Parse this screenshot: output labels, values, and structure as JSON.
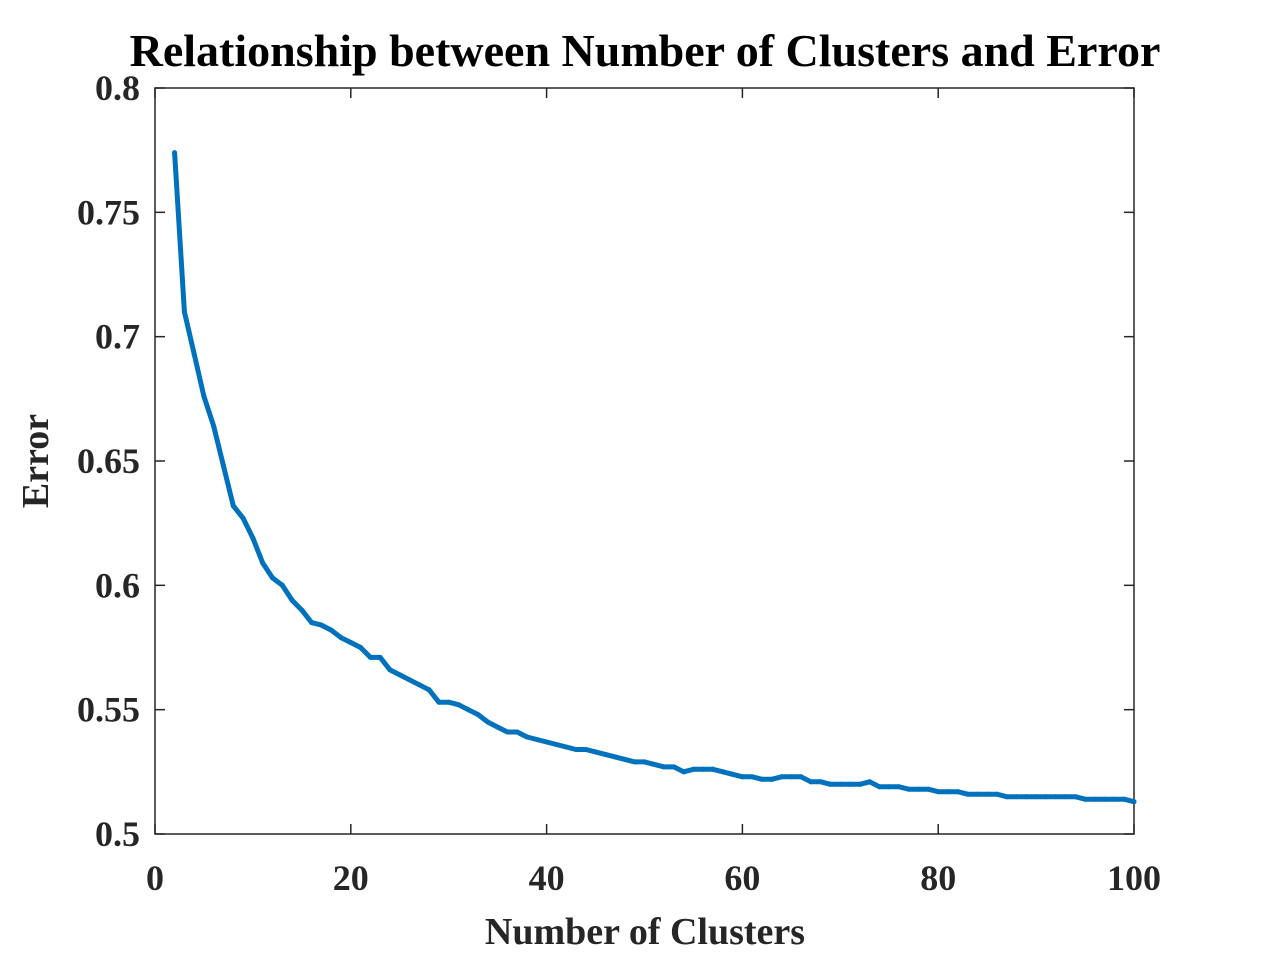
{
  "chart_data": {
    "type": "line",
    "title": "Relationship between Number of Clusters and Error",
    "xlabel": "Number of Clusters",
    "ylabel": "Error",
    "xlim": [
      0,
      100
    ],
    "ylim": [
      0.5,
      0.8
    ],
    "xticks": [
      "0",
      "20",
      "40",
      "60",
      "80",
      "100"
    ],
    "yticks": [
      "0.5",
      "0.55",
      "0.6",
      "0.65",
      "0.7",
      "0.75",
      "0.8"
    ],
    "grid": false,
    "line_color": "#0072BD",
    "series": [
      {
        "x": [
          2,
          3,
          4,
          5,
          6,
          7,
          8,
          9,
          10,
          11,
          12,
          13,
          14,
          15,
          16,
          17,
          18,
          19,
          20,
          21,
          22,
          23,
          24,
          25,
          26,
          27,
          28,
          29,
          30,
          31,
          32,
          33,
          34,
          35,
          36,
          37,
          38,
          39,
          40,
          41,
          42,
          43,
          44,
          45,
          46,
          47,
          48,
          49,
          50,
          51,
          52,
          53,
          54,
          55,
          56,
          57,
          58,
          59,
          60,
          61,
          62,
          63,
          64,
          65,
          66,
          67,
          68,
          69,
          70,
          71,
          72,
          73,
          74,
          75,
          76,
          77,
          78,
          79,
          80,
          81,
          82,
          83,
          84,
          85,
          86,
          87,
          88,
          89,
          90,
          91,
          92,
          93,
          94,
          95,
          96,
          97,
          98,
          99,
          100
        ],
        "y": [
          0.774,
          0.71,
          0.693,
          0.676,
          0.664,
          0.648,
          0.632,
          0.627,
          0.619,
          0.609,
          0.603,
          0.6,
          0.594,
          0.59,
          0.585,
          0.584,
          0.582,
          0.579,
          0.577,
          0.575,
          0.571,
          0.571,
          0.566,
          0.564,
          0.562,
          0.56,
          0.558,
          0.553,
          0.553,
          0.552,
          0.55,
          0.548,
          0.545,
          0.543,
          0.541,
          0.541,
          0.539,
          0.538,
          0.537,
          0.536,
          0.535,
          0.534,
          0.534,
          0.533,
          0.532,
          0.531,
          0.53,
          0.529,
          0.529,
          0.528,
          0.527,
          0.527,
          0.525,
          0.526,
          0.526,
          0.526,
          0.525,
          0.524,
          0.523,
          0.523,
          0.522,
          0.522,
          0.523,
          0.523,
          0.523,
          0.521,
          0.521,
          0.52,
          0.52,
          0.52,
          0.52,
          0.521,
          0.519,
          0.519,
          0.519,
          0.518,
          0.518,
          0.518,
          0.517,
          0.517,
          0.517,
          0.516,
          0.516,
          0.516,
          0.516,
          0.515,
          0.515,
          0.515,
          0.515,
          0.515,
          0.515,
          0.515,
          0.515,
          0.514,
          0.514,
          0.514,
          0.514,
          0.514,
          0.513
        ]
      }
    ]
  }
}
